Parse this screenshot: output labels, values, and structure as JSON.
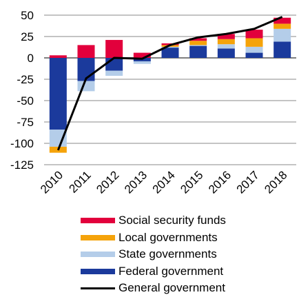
{
  "chart_data": {
    "type": "bar",
    "stacked": true,
    "categories": [
      "2010",
      "2011",
      "2012",
      "2013",
      "2014",
      "2015",
      "2016",
      "2017",
      "2018"
    ],
    "ylim": [
      -125,
      50
    ],
    "yticks": [
      50,
      25,
      0,
      -25,
      -50,
      -75,
      -100,
      -125
    ],
    "grid": true,
    "legend_position": "bottom",
    "series": [
      {
        "name": "Federal government",
        "color": "#1b3a9c",
        "values": [
          -84,
          -27,
          -15,
          -4,
          12,
          14,
          11,
          6,
          19
        ]
      },
      {
        "name": "State governments",
        "color": "#b4cde9",
        "values": [
          -20,
          -12,
          -6,
          -3,
          1,
          1,
          5,
          7,
          15
        ]
      },
      {
        "name": "Local governments",
        "color": "#f5a30a",
        "values": [
          -7,
          0,
          0,
          0,
          2,
          5,
          6,
          10,
          6
        ]
      },
      {
        "name": "Social security funds",
        "color": "#e2003c",
        "values": [
          3,
          15,
          21,
          6,
          2,
          3,
          6,
          10,
          7
        ]
      },
      {
        "name": "General government",
        "type": "line",
        "color": "#000000",
        "values": [
          -108,
          -24,
          0,
          -1,
          15,
          24,
          28,
          34,
          48
        ]
      }
    ]
  }
}
